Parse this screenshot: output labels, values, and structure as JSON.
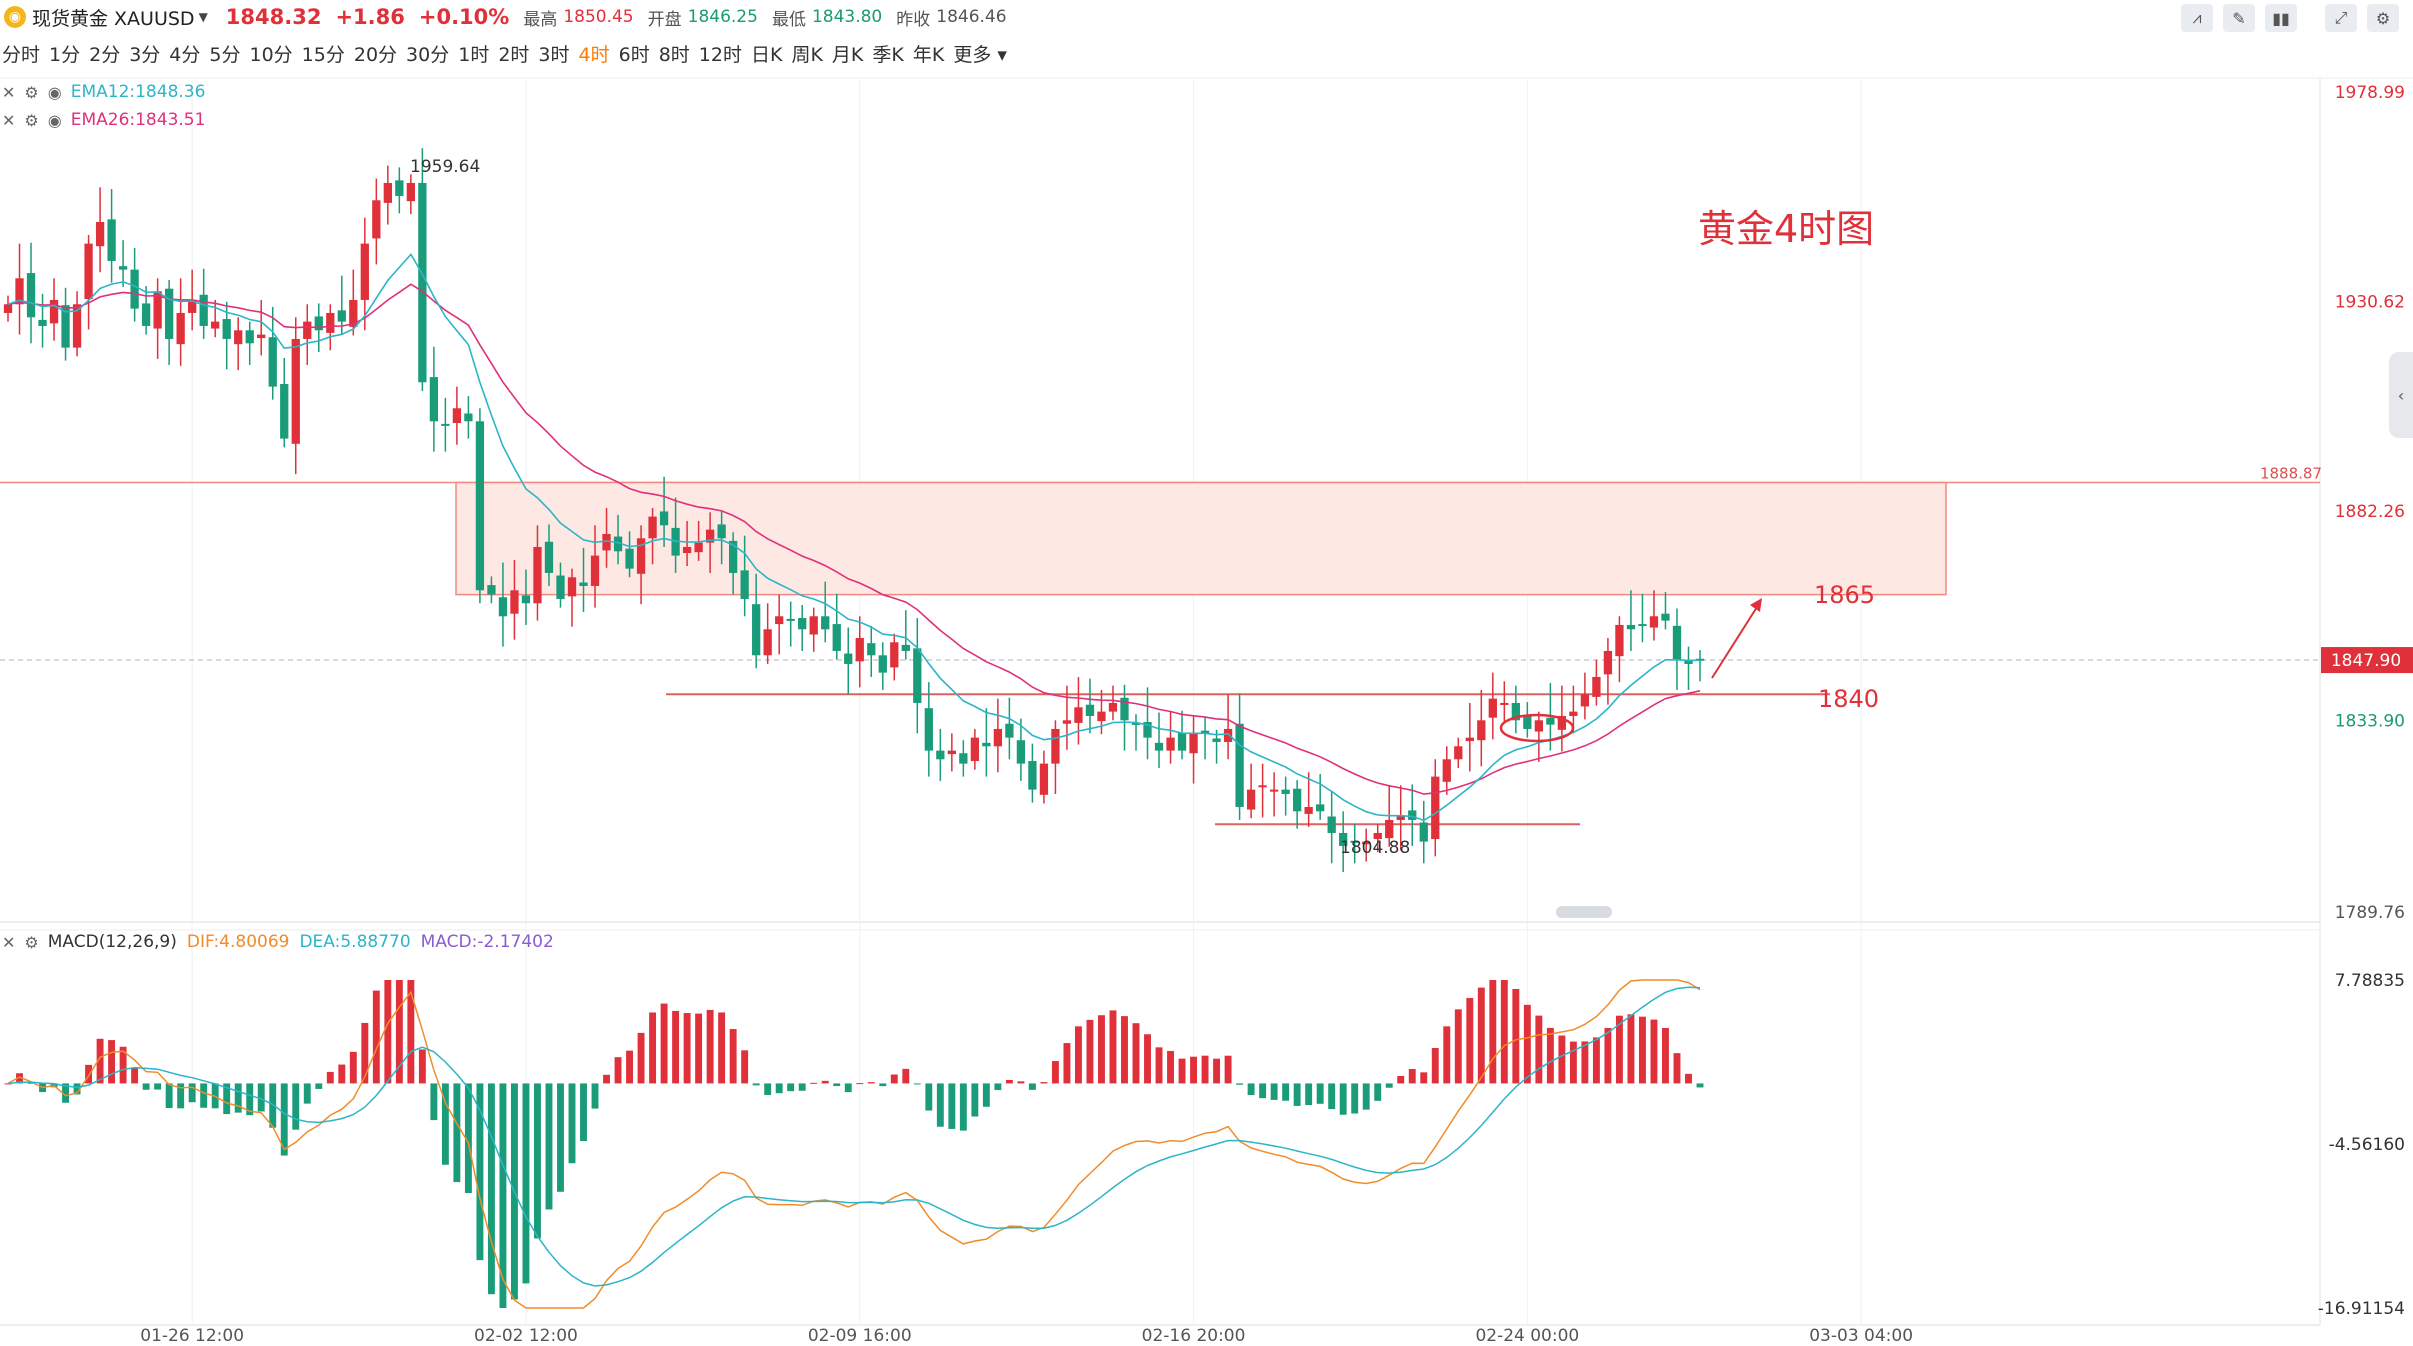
{
  "header": {
    "symbol_icon": "gold-coin-icon",
    "title": "现货黄金 XAUUSD",
    "price": "1848.32",
    "change": "+1.86",
    "change_pct": "+0.10%",
    "high_label": "最高",
    "high": "1850.45",
    "open_label": "开盘",
    "open": "1846.25",
    "low_label": "最低",
    "low": "1843.80",
    "prev_label": "昨收",
    "prev": "1846.46"
  },
  "toolbar": [
    "line-style-icon",
    "draw-icon",
    "indicator-icon",
    "expand-icon",
    "settings-icon"
  ],
  "periods": [
    "分时",
    "1分",
    "2分",
    "3分",
    "4分",
    "5分",
    "10分",
    "15分",
    "20分",
    "30分",
    "1时",
    "2时",
    "3时",
    "4时",
    "6时",
    "8时",
    "12时",
    "日K",
    "周K",
    "月K",
    "季K",
    "年K",
    "更多"
  ],
  "active_period": "4时",
  "indicators": {
    "ema12": "EMA12:1848.36",
    "ema26": "EMA26:1843.51",
    "macd_name": "MACD(12,26,9)",
    "dif": "DIF:4.80069",
    "dea": "DEA:5.88770",
    "macd": "MACD:-2.17402"
  },
  "colors": {
    "up": "#e0303a",
    "down": "#1a9c7a",
    "ema12": "#2bb5c8",
    "ema26": "#e0307a",
    "dif": "#f08c2a",
    "dea": "#2bb5c8",
    "zone_fill": "#fde8e4",
    "zone_line": "#f08a80"
  },
  "chart_data": {
    "type": "candlestick",
    "title": "黄金4时图",
    "price_axis": {
      "ticks": [
        1978.99,
        1930.62,
        1882.26,
        1833.9,
        1789.76
      ],
      "tick_labels": [
        "1978.99",
        "1930.62",
        "1882.26",
        "1833.90",
        "1789.76"
      ],
      "current": "1847.90",
      "ylim": [
        1789.76,
        1978.99
      ]
    },
    "time_axis": {
      "labels": [
        "01-26 12:00",
        "02-02 12:00",
        "02-09 16:00",
        "02-16 20:00",
        "02-24 00:00",
        "03-03 04:00"
      ]
    },
    "closes": [
      1930,
      1936,
      1927,
      1925,
      1931,
      1920,
      1930,
      1944,
      1949,
      1940,
      1938,
      1929,
      1925,
      1933,
      1922,
      1928,
      1931,
      1925,
      1926,
      1922,
      1924,
      1921,
      1923,
      1911,
      1899,
      1922,
      1926,
      1924,
      1928,
      1926,
      1931,
      1944,
      1954,
      1958,
      1955,
      1958,
      1912,
      1903,
      1902,
      1906,
      1903,
      1864,
      1863,
      1858,
      1864,
      1861,
      1874,
      1868,
      1862,
      1867,
      1865,
      1872,
      1877,
      1873,
      1869,
      1876,
      1881,
      1879,
      1872,
      1874,
      1875,
      1878,
      1876,
      1868,
      1862,
      1849,
      1855,
      1858,
      1857,
      1855,
      1858,
      1855,
      1850,
      1847,
      1853,
      1849,
      1845,
      1852,
      1850,
      1838,
      1827,
      1825,
      1827,
      1824,
      1830,
      1828,
      1832,
      1830,
      1824,
      1818,
      1824,
      1832,
      1834,
      1837,
      1835,
      1836,
      1838,
      1834,
      1833,
      1830,
      1827,
      1830,
      1827,
      1831,
      1831,
      1829,
      1832,
      1814,
      1818,
      1819,
      1818,
      1817,
      1813,
      1814,
      1813,
      1808,
      1805,
      1806,
      1806,
      1808,
      1811,
      1812,
      1811,
      1806,
      1821,
      1825,
      1828,
      1830,
      1834,
      1839,
      1838,
      1834,
      1832,
      1834,
      1833,
      1835,
      1836,
      1840,
      1844,
      1850,
      1856,
      1855,
      1856,
      1858,
      1857,
      1848,
      1847,
      1848
    ],
    "range": {
      "high": "1959.64",
      "low": "1804.88"
    },
    "annotations": [
      "1865",
      "1840"
    ],
    "resistance_zone": {
      "top": "1888.87",
      "bottom": 1863
    },
    "support_lines": [
      1840,
      1810
    ],
    "macd_axis": {
      "tick_labels": [
        "7.78835",
        "-4.56160",
        "-16.91154"
      ],
      "ylim": [
        -16.91154,
        7.78835
      ]
    }
  }
}
